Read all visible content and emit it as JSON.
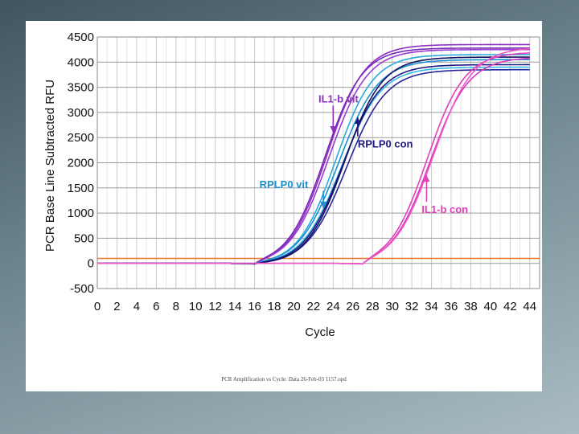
{
  "chart_data": {
    "type": "line",
    "title": "",
    "xlabel": "Cycle",
    "ylabel": "PCR Base Line Subtracted RFU",
    "xlim": [
      0,
      45
    ],
    "ylim": [
      -500,
      4500
    ],
    "x_ticks": [
      "0",
      "2",
      "4",
      "6",
      "8",
      "10",
      "12",
      "14",
      "16",
      "18",
      "20",
      "22",
      "24",
      "26",
      "28",
      "30",
      "32",
      "34",
      "36",
      "38",
      "40",
      "42",
      "44"
    ],
    "y_ticks": [
      "4500",
      "4000",
      "3500",
      "3000",
      "2500",
      "2000",
      "1500",
      "1000",
      "500",
      "0",
      "-500"
    ],
    "grid": true,
    "threshold": 100,
    "threshold_color": "#e8742a",
    "series": [
      {
        "color": "#8e2fc4",
        "midpoint": 23.4,
        "plateau": 4350,
        "slope": 1.9,
        "start": 16
      },
      {
        "color": "#9a3cd0",
        "midpoint": 23.6,
        "plateau": 4250,
        "slope": 1.95,
        "start": 16
      },
      {
        "color": "#7a28b8",
        "midpoint": 23.2,
        "plateau": 4280,
        "slope": 1.9,
        "start": 16
      },
      {
        "color": "#2aa8dc",
        "midpoint": 24.3,
        "plateau": 4150,
        "slope": 1.9,
        "start": 16
      },
      {
        "color": "#1b8fd0",
        "midpoint": 24.6,
        "plateau": 4050,
        "slope": 2.0,
        "start": 16
      },
      {
        "color": "#38b8e8",
        "midpoint": 24.9,
        "plateau": 3900,
        "slope": 2.0,
        "start": 16
      },
      {
        "color": "#1a1a80",
        "midpoint": 25.0,
        "plateau": 3950,
        "slope": 1.95,
        "start": 16
      },
      {
        "color": "#26269a",
        "midpoint": 25.4,
        "plateau": 3850,
        "slope": 2.0,
        "start": 16
      },
      {
        "color": "#101060",
        "midpoint": 25.2,
        "plateau": 4100,
        "slope": 1.9,
        "start": 16
      },
      {
        "color": "#e040b8",
        "midpoint": 33.6,
        "plateau": 4200,
        "slope": 1.9,
        "start": 27
      },
      {
        "color": "#d838c0",
        "midpoint": 33.9,
        "plateau": 4100,
        "slope": 1.95,
        "start": 27
      },
      {
        "color": "#ee58c8",
        "midpoint": 34.2,
        "plateau": 4300,
        "slope": 2.0,
        "start": 27
      }
    ],
    "annotations": [
      {
        "text": "IL1-b vit",
        "color": "#8e2fc4",
        "x": 22.5,
        "y": 3200,
        "arrow_to": [
          24,
          2600
        ]
      },
      {
        "text": "RPLP0 con",
        "color": "#1a1a80",
        "x": 26.5,
        "y": 2300,
        "arrow_to": [
          26.5,
          2900
        ]
      },
      {
        "text": "RPLP0 vit",
        "color": "#1b8fd0",
        "x": 16.5,
        "y": 1500,
        "arrow_to": [
          23,
          1100
        ]
      },
      {
        "text": "IL1-b con",
        "color": "#e040b8",
        "x": 33,
        "y": 1000,
        "arrow_to": [
          33.5,
          1750
        ]
      }
    ]
  },
  "footer": "PCR Amplification vs Cycle: Data 26-Feb-03 1157.opd"
}
